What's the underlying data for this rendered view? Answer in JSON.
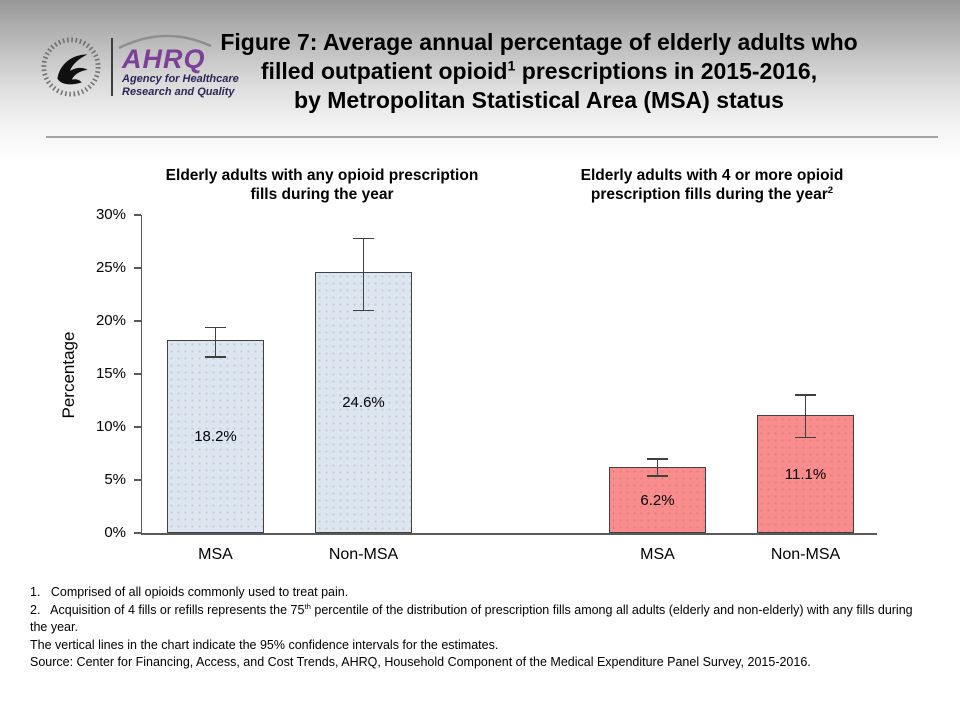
{
  "header": {
    "logo": {
      "ahrq_text": "AHRQ",
      "tagline_line1": "Agency for Healthcare",
      "tagline_line2": "Research and Quality"
    },
    "title": {
      "line1": "Figure 7: Average annual percentage of elderly adults who",
      "line2_pre": "filled outpatient opioid",
      "line2_sup": "1",
      "line2_post": " prescriptions in 2015-2016,",
      "line3": "by Metropolitan Statistical Area (MSA) status"
    }
  },
  "chart_data": {
    "type": "bar",
    "title": "Figure 7: Average annual percentage of elderly adults who filled outpatient opioid prescriptions in 2015-2016, by Metropolitan Statistical Area (MSA) status",
    "ylabel": "Percentage",
    "xlabel": "",
    "ylim": [
      0,
      30
    ],
    "ytick_step": 5,
    "ytick_labels": [
      "0%",
      "5%",
      "10%",
      "15%",
      "20%",
      "25%",
      "30%"
    ],
    "grid": false,
    "legend": "none",
    "error_bar_note": "95% confidence intervals",
    "bar_border_color": "#404040",
    "groups": [
      {
        "title_pre": "Elderly adults with any opioid prescription fills during the year",
        "title_sup": "",
        "color": "#dce6f1",
        "bars": [
          {
            "category": "MSA",
            "value": 18.2,
            "label": "18.2%",
            "ci_low": 16.6,
            "ci_high": 19.4
          },
          {
            "category": "Non-MSA",
            "value": 24.6,
            "label": "24.6%",
            "ci_low": 21.0,
            "ci_high": 27.8
          }
        ]
      },
      {
        "title_pre": "Elderly adults with 4 or more opioid prescription fills during the year",
        "title_sup": "2",
        "color": "#f98d8e",
        "bars": [
          {
            "category": "MSA",
            "value": 6.2,
            "label": "6.2%",
            "ci_low": 5.4,
            "ci_high": 7.0
          },
          {
            "category": "Non-MSA",
            "value": 11.1,
            "label": "11.1%",
            "ci_low": 9.0,
            "ci_high": 13.0
          }
        ]
      }
    ]
  },
  "footnotes": {
    "line1": "1.   Comprised of all opioids commonly used to treat pain.",
    "line2_pre": "2.   Acquisition of 4 fills or refills represents the 75",
    "line2_sup": "th",
    "line2_post": " percentile of the distribution of prescription fills among all adults (elderly and non-elderly) with any fills during the year.",
    "line3": "The vertical lines in the chart indicate the 95% confidence intervals for the estimates.",
    "line4": "Source: Center for Financing, Access, and Cost Trends, AHRQ, Household Component of the Medical Expenditure Panel Survey, 2015-2016."
  }
}
